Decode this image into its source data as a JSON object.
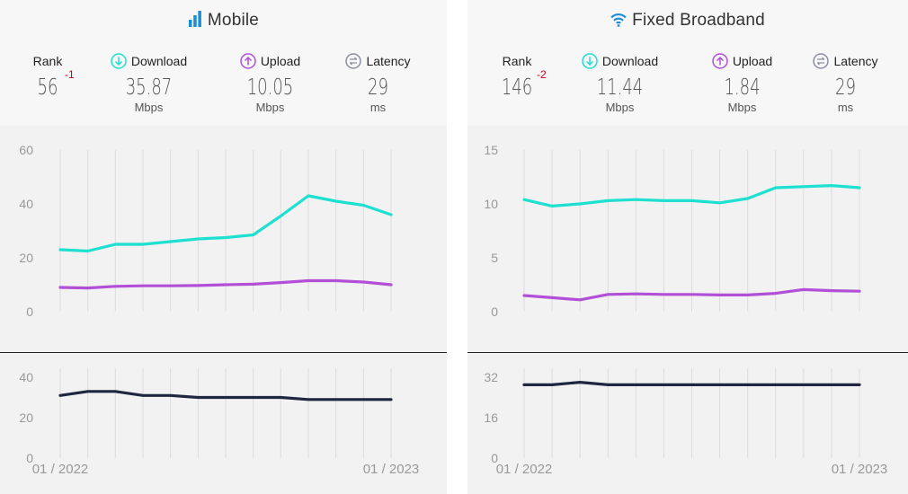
{
  "colors": {
    "download": "#1ee0d0",
    "upload": "#b14fd6",
    "latency": "#1f2640",
    "rank_delta": "#d0021b",
    "title_icon": "#1a8dd8",
    "upload_icon": "#b14fd6",
    "download_icon": "#1ee0d0",
    "latency_icon": "#8a8ea0"
  },
  "mobile": {
    "title": "Mobile",
    "icon": "signal-bars-icon",
    "rank_label": "Rank",
    "rank_value": "56",
    "rank_delta": "-1",
    "download_label": "Download",
    "download_value": "35.87",
    "download_unit": "Mbps",
    "upload_label": "Upload",
    "upload_value": "10.05",
    "upload_unit": "Mbps",
    "latency_label": "Latency",
    "latency_value": "29",
    "latency_unit": "ms",
    "date_start": "01 / 2022",
    "date_end": "01 / 2023"
  },
  "fixed": {
    "title": "Fixed Broadband",
    "icon": "wifi-icon",
    "rank_label": "Rank",
    "rank_value": "146",
    "rank_delta": "-2",
    "download_label": "Download",
    "download_value": "11.44",
    "download_unit": "Mbps",
    "upload_label": "Upload",
    "upload_value": "1.84",
    "upload_unit": "Mbps",
    "latency_label": "Latency",
    "latency_value": "29",
    "latency_unit": "ms",
    "date_start": "01 / 2022",
    "date_end": "01 / 2023"
  },
  "chart_data": [
    {
      "id": "mobile-speed",
      "type": "line",
      "x": [
        "01/2022",
        "02/2022",
        "03/2022",
        "04/2022",
        "05/2022",
        "06/2022",
        "07/2022",
        "08/2022",
        "09/2022",
        "10/2022",
        "11/2022",
        "12/2022",
        "01/2023"
      ],
      "x_tick_labels": [
        "01 / 2022",
        "01 / 2023"
      ],
      "ylim": [
        0,
        60
      ],
      "yticks": [
        0,
        20,
        40,
        60
      ],
      "grid": "vertical",
      "series": [
        {
          "key": "download",
          "values": [
            23,
            22.5,
            25,
            25,
            26,
            27,
            27.5,
            28.5,
            35.5,
            43,
            41,
            39.5,
            36
          ]
        },
        {
          "key": "upload",
          "values": [
            9,
            8.8,
            9.4,
            9.6,
            9.6,
            9.7,
            10,
            10.2,
            10.8,
            11.5,
            11.5,
            11,
            10
          ]
        }
      ]
    },
    {
      "id": "mobile-latency",
      "type": "line",
      "x": [
        "01/2022",
        "02/2022",
        "03/2022",
        "04/2022",
        "05/2022",
        "06/2022",
        "07/2022",
        "08/2022",
        "09/2022",
        "10/2022",
        "11/2022",
        "12/2022",
        "01/2023"
      ],
      "ylim": [
        0,
        40
      ],
      "yticks": [
        0,
        20,
        40
      ],
      "grid": "vertical",
      "series": [
        {
          "key": "latency",
          "values": [
            31,
            33,
            33,
            31,
            31,
            30,
            30,
            30,
            30,
            29,
            29,
            29,
            29
          ]
        }
      ]
    },
    {
      "id": "fixed-speed",
      "type": "line",
      "x": [
        "01/2022",
        "02/2022",
        "03/2022",
        "04/2022",
        "05/2022",
        "06/2022",
        "07/2022",
        "08/2022",
        "09/2022",
        "10/2022",
        "11/2022",
        "12/2022",
        "01/2023"
      ],
      "x_tick_labels": [
        "01 / 2022",
        "01 / 2023"
      ],
      "ylim": [
        0,
        15
      ],
      "yticks": [
        0,
        5,
        10,
        15
      ],
      "grid": "vertical",
      "series": [
        {
          "key": "download",
          "values": [
            10.4,
            9.8,
            10,
            10.3,
            10.4,
            10.3,
            10.3,
            10.1,
            10.5,
            11.5,
            11.6,
            11.7,
            11.5
          ]
        },
        {
          "key": "upload",
          "values": [
            1.5,
            1.3,
            1.1,
            1.6,
            1.65,
            1.6,
            1.6,
            1.55,
            1.55,
            1.7,
            2.05,
            1.95,
            1.9
          ]
        }
      ]
    },
    {
      "id": "fixed-latency",
      "type": "line",
      "x": [
        "01/2022",
        "02/2022",
        "03/2022",
        "04/2022",
        "05/2022",
        "06/2022",
        "07/2022",
        "08/2022",
        "09/2022",
        "10/2022",
        "11/2022",
        "12/2022",
        "01/2023"
      ],
      "ylim": [
        0,
        32
      ],
      "yticks": [
        0,
        16,
        32
      ],
      "grid": "vertical",
      "series": [
        {
          "key": "latency",
          "values": [
            29,
            29,
            30,
            29,
            29,
            29,
            29,
            29,
            29,
            29,
            29,
            29,
            29
          ]
        }
      ]
    }
  ]
}
